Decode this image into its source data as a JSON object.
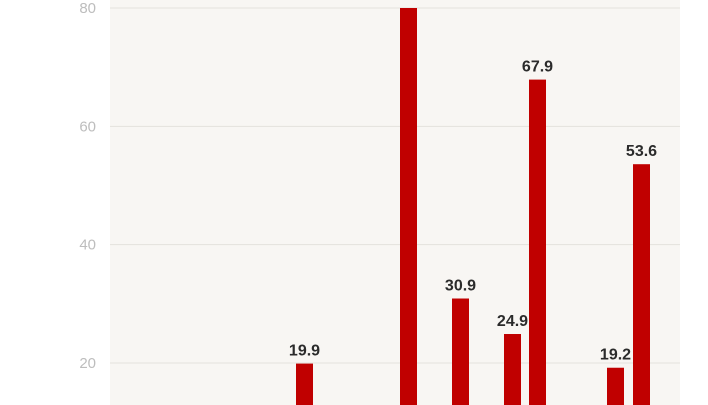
{
  "chart_data": {
    "type": "bar",
    "title": "",
    "xlabel": "",
    "ylabel": "",
    "ylim": [
      0,
      80
    ],
    "y_ticks": [
      "20",
      "40",
      "60",
      "80"
    ],
    "grid": true,
    "bar_color": "#c00000",
    "plot_background": "#f8f6f3",
    "bars": [
      {
        "value": 19.9,
        "label": "19.9"
      },
      {
        "value": 80,
        "label": ""
      },
      {
        "value": 30.9,
        "label": "30.9"
      },
      {
        "value": 24.9,
        "label": "24.9"
      },
      {
        "value": 67.9,
        "label": "67.9"
      },
      {
        "value": 19.2,
        "label": "19.2"
      },
      {
        "value": 53.6,
        "label": "53.6"
      }
    ]
  }
}
